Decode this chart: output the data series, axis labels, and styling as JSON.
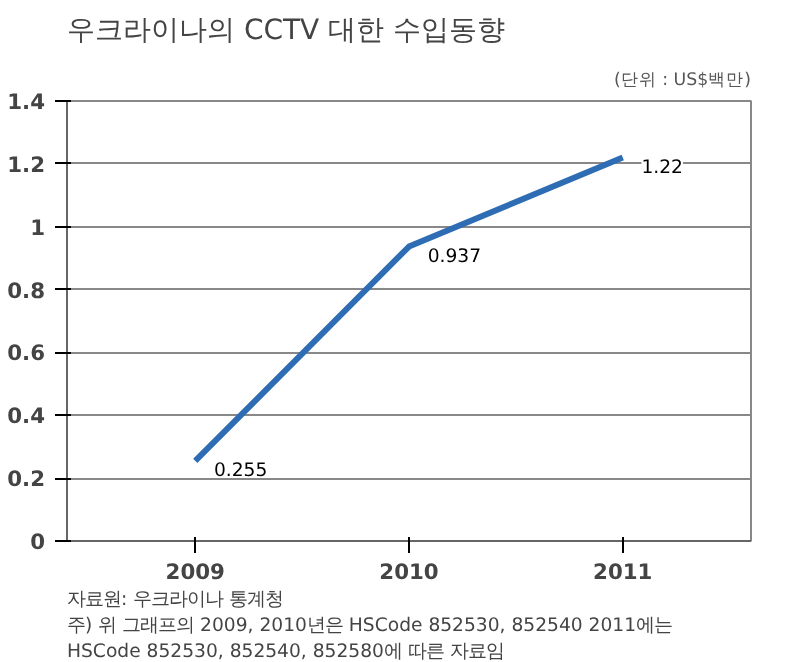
{
  "chart_data": {
    "type": "line",
    "title": "우크라이나의 CCTV 대한 수입동향",
    "subtitle": "(단위 : US$백만)",
    "categories": [
      "2009",
      "2010",
      "2011"
    ],
    "series": [
      {
        "color": "#2e6db4",
        "values": [
          0.255,
          0.937,
          1.22
        ]
      }
    ],
    "ylim": [
      0,
      1.4
    ],
    "yticks": [
      0,
      0.2,
      0.4,
      0.6,
      0.8,
      1,
      1.2,
      1.4
    ],
    "grid": "y",
    "data_labels": true,
    "marker": "none",
    "line_style": "solid",
    "annotations": [
      "자료원: 우크라이나 통계청",
      "주) 위 그래프의 2009, 2010년은 HSCode 852530, 852540 2011에는",
      "HSCode 852530, 852540, 852580에 따른 자료임"
    ]
  }
}
